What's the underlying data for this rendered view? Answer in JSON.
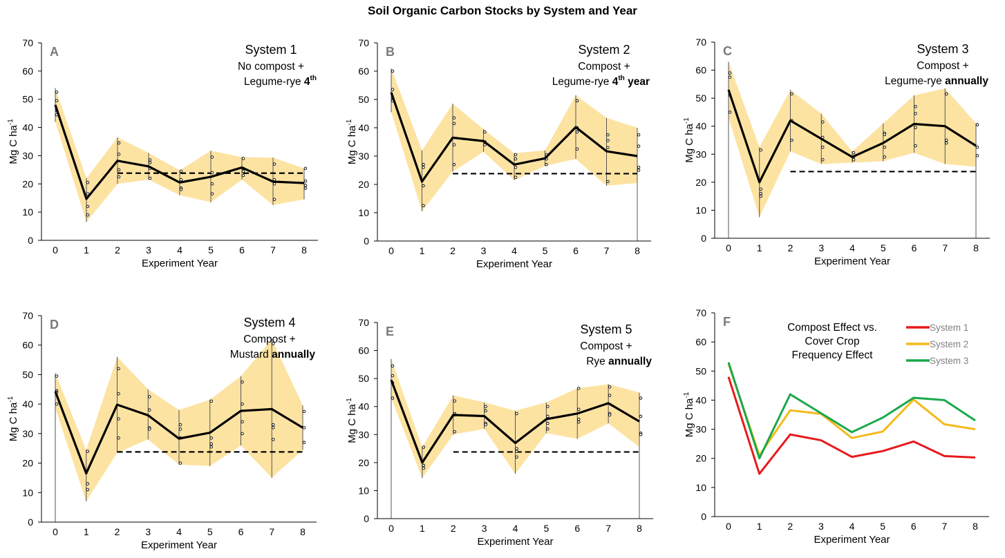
{
  "figure": {
    "title": "Soil Organic Carbon Stocks by System and Year"
  },
  "chart_data": [
    {
      "type": "line",
      "panel_letter": "A",
      "title": "System 1",
      "subtitle_line1": "No compost +",
      "subtitle_line2_plain": "Legume-rye ",
      "subtitle_line2_bold": "4",
      "subtitle_line2_sup": "th",
      "subtitle_line2_tail": "",
      "xlabel": "Experiment Year",
      "ylabel": "Mg C ha",
      "ylabel_sup": "-1",
      "x": [
        0,
        1,
        2,
        3,
        4,
        5,
        6,
        7,
        8
      ],
      "x_tick_labels": [
        "0",
        "1",
        "2",
        "3",
        "4",
        "5",
        "6",
        "7",
        "8"
      ],
      "ylim": [
        0,
        70
      ],
      "y_tick_labels": [
        "0",
        "10",
        "20",
        "30",
        "40",
        "50",
        "60",
        "70"
      ],
      "series": [
        {
          "values": [
            48,
            14.7,
            28.2,
            26.2,
            20.5,
            22.5,
            25.8,
            20.8,
            20.3
          ]
        }
      ],
      "band_upper": [
        54,
        22,
        36.5,
        31,
        24.8,
        31.8,
        29.5,
        29.3,
        25.5
      ],
      "band_lower": [
        42,
        6.5,
        20,
        21.5,
        16,
        13.5,
        21.5,
        12.5,
        14.5
      ],
      "whisker_upper": [
        54,
        22,
        36.5,
        31,
        24.8,
        31.8,
        29.5,
        29.3,
        25.5
      ],
      "whisker_lower": [
        42,
        6.5,
        20,
        21.5,
        16,
        13.5,
        21.5,
        12.5,
        14.5
      ],
      "reference_line": {
        "y": 23.8,
        "x_start": 2,
        "x_end": 8
      },
      "points": [
        [
          0,
          52.5
        ],
        [
          0,
          49.5
        ],
        [
          0,
          46
        ],
        [
          0,
          44.5
        ],
        [
          1,
          20.5
        ],
        [
          1,
          16.5
        ],
        [
          1,
          12
        ],
        [
          1,
          9
        ],
        [
          2,
          34.5
        ],
        [
          2,
          30.5
        ],
        [
          2,
          25
        ],
        [
          2,
          22.5
        ],
        [
          3,
          28.5
        ],
        [
          3,
          27.5
        ],
        [
          3,
          25.5
        ],
        [
          3,
          22
        ],
        [
          4,
          24.5
        ],
        [
          4,
          21.5
        ],
        [
          4,
          18.5
        ],
        [
          4,
          18
        ],
        [
          5,
          29.5
        ],
        [
          5,
          24
        ],
        [
          5,
          20
        ],
        [
          5,
          16.5
        ],
        [
          6,
          29
        ],
        [
          6,
          25.5
        ],
        [
          6,
          24.5
        ],
        [
          6,
          23
        ],
        [
          7,
          27
        ],
        [
          7,
          21.5
        ],
        [
          7,
          20
        ],
        [
          7,
          14.5
        ],
        [
          8,
          25.5
        ],
        [
          8,
          21
        ],
        [
          8,
          19.5
        ],
        [
          8,
          18.5
        ]
      ]
    },
    {
      "type": "line",
      "panel_letter": "B",
      "title": "System 2",
      "subtitle_line1": "Compost +",
      "subtitle_line2_plain": "Legume-rye ",
      "subtitle_line2_bold": "4",
      "subtitle_line2_sup": "th",
      "subtitle_line2_tail": " year",
      "xlabel": "Experiment Year",
      "ylabel": "Mg C ha",
      "ylabel_sup": "-1",
      "x": [
        0,
        1,
        2,
        3,
        4,
        5,
        6,
        7,
        8
      ],
      "x_tick_labels": [
        "0",
        "1",
        "2",
        "3",
        "4",
        "5",
        "6",
        "7",
        "8"
      ],
      "ylim": [
        0,
        70
      ],
      "y_tick_labels": [
        "0",
        "10",
        "20",
        "30",
        "40",
        "50",
        "60",
        "70"
      ],
      "series": [
        {
          "values": [
            52.5,
            21,
            36.5,
            35.3,
            27,
            29.2,
            40.2,
            31.7,
            30
          ]
        }
      ],
      "band_upper": [
        61,
        32,
        48.5,
        39.5,
        31,
        32,
        51.5,
        43.5,
        40
      ],
      "band_lower": [
        45.5,
        10.5,
        24.5,
        31.5,
        21.5,
        26.5,
        29,
        19.5,
        20.5
      ],
      "whisker_upper": [
        61,
        32,
        48.5,
        39.5,
        31,
        32,
        51.5,
        43.5,
        40
      ],
      "whisker_lower": [
        45.5,
        10.5,
        24.5,
        31.5,
        21.5,
        26.5,
        29,
        19.5,
        0
      ],
      "reference_line": {
        "y": 23.8,
        "x_start": 2,
        "x_end": 8
      },
      "points": [
        [
          0,
          60
        ],
        [
          0,
          53.5
        ],
        [
          0,
          50.5
        ],
        [
          0,
          49.5
        ],
        [
          1,
          27
        ],
        [
          1,
          26
        ],
        [
          1,
          19.5
        ],
        [
          1,
          12.5
        ],
        [
          2,
          43.5
        ],
        [
          2,
          41.5
        ],
        [
          2,
          34
        ],
        [
          2,
          27
        ],
        [
          3,
          38.5
        ],
        [
          3,
          35
        ],
        [
          3,
          34
        ],
        [
          4,
          30.5
        ],
        [
          4,
          29
        ],
        [
          4,
          26
        ],
        [
          4,
          22.5
        ],
        [
          5,
          30.5
        ],
        [
          5,
          29
        ],
        [
          5,
          27
        ],
        [
          6,
          49.5
        ],
        [
          6,
          40
        ],
        [
          6,
          38.5
        ],
        [
          6,
          32.5
        ],
        [
          7,
          37.5
        ],
        [
          7,
          35.5
        ],
        [
          7,
          33
        ],
        [
          7,
          21
        ],
        [
          8,
          37.5
        ],
        [
          8,
          33.5
        ],
        [
          8,
          26
        ],
        [
          8,
          25
        ]
      ]
    },
    {
      "type": "line",
      "panel_letter": "C",
      "title": "System 3",
      "subtitle_line1": "Compost +",
      "subtitle_line2_plain": "Legume-rye ",
      "subtitle_line2_bold": "annually",
      "subtitle_line2_sup": "",
      "subtitle_line2_tail": "",
      "xlabel": "Experiment Year",
      "ylabel": "Mg C ha",
      "ylabel_sup": "-1",
      "x": [
        0,
        1,
        2,
        3,
        4,
        5,
        6,
        7,
        8
      ],
      "x_tick_labels": [
        "0",
        "1",
        "2",
        "3",
        "4",
        "5",
        "6",
        "7",
        "8"
      ],
      "ylim": [
        0,
        70
      ],
      "y_tick_labels": [
        "0",
        "10",
        "20",
        "30",
        "40",
        "50",
        "60",
        "70"
      ],
      "series": [
        {
          "values": [
            53,
            20,
            42,
            35.5,
            29,
            34,
            40.8,
            40,
            33
          ]
        }
      ],
      "band_upper": [
        63,
        32.5,
        53,
        44.5,
        31,
        41,
        51,
        53.5,
        41
      ],
      "band_lower": [
        43,
        7.5,
        31,
        26.5,
        27,
        27.5,
        30.5,
        26.5,
        25.5
      ],
      "whisker_upper": [
        63,
        32.5,
        53,
        44.5,
        31,
        41,
        51,
        53.5,
        41
      ],
      "whisker_lower": [
        0,
        7.5,
        31,
        26.5,
        27,
        27.5,
        30.5,
        26.5,
        0
      ],
      "reference_line": {
        "y": 23.8,
        "x_start": 2,
        "x_end": 8
      },
      "points": [
        [
          0,
          59
        ],
        [
          0,
          57.5
        ],
        [
          0,
          51
        ],
        [
          0,
          45
        ],
        [
          1,
          31.5
        ],
        [
          1,
          17.5
        ],
        [
          1,
          16
        ],
        [
          1,
          15
        ],
        [
          2,
          51.5
        ],
        [
          2,
          42
        ],
        [
          2,
          35
        ],
        [
          3,
          41.5
        ],
        [
          3,
          36
        ],
        [
          3,
          32.5
        ],
        [
          3,
          28
        ],
        [
          4,
          30.5
        ],
        [
          4,
          29
        ],
        [
          4,
          28
        ],
        [
          5,
          37.5
        ],
        [
          5,
          37
        ],
        [
          5,
          32.5
        ],
        [
          5,
          29
        ],
        [
          6,
          47
        ],
        [
          6,
          44.5
        ],
        [
          6,
          39.5
        ],
        [
          6,
          33
        ],
        [
          7,
          51.5
        ],
        [
          7,
          35
        ],
        [
          7,
          34
        ],
        [
          8,
          40.5
        ],
        [
          8,
          32.5
        ],
        [
          8,
          29.5
        ]
      ]
    },
    {
      "type": "line",
      "panel_letter": "D",
      "title": "System 4",
      "subtitle_line1": "Compost +",
      "subtitle_line2_plain": "Mustard ",
      "subtitle_line2_bold": "annually",
      "subtitle_line2_sup": "",
      "subtitle_line2_tail": "",
      "xlabel": "Experiment Year",
      "ylabel": "Mg C ha",
      "ylabel_sup": "-1",
      "x": [
        0,
        1,
        2,
        3,
        4,
        5,
        6,
        7,
        8
      ],
      "x_tick_labels": [
        "0",
        "1",
        "2",
        "3",
        "4",
        "5",
        "6",
        "7",
        "8"
      ],
      "ylim": [
        0,
        70
      ],
      "y_tick_labels": [
        "0",
        "10",
        "20",
        "30",
        "40",
        "50",
        "60",
        "70"
      ],
      "series": [
        {
          "values": [
            44.3,
            16.5,
            39.8,
            36.2,
            28.3,
            30.3,
            37.7,
            38.3,
            32
          ]
        }
      ],
      "band_upper": [
        50.5,
        24.5,
        56,
        45,
        38,
        41.5,
        49.5,
        62,
        39.5
      ],
      "band_lower": [
        38.5,
        7,
        23.5,
        28,
        19.5,
        19,
        26,
        15,
        24.5
      ],
      "whisker_upper": [
        50.5,
        24.5,
        56,
        45,
        38,
        41.5,
        49.5,
        62,
        39.5
      ],
      "whisker_lower": [
        0,
        7,
        23.5,
        28,
        19.5,
        19,
        26,
        15,
        24.5
      ],
      "reference_line": {
        "y": 23.8,
        "x_start": 2,
        "x_end": 8
      },
      "points": [
        [
          0,
          49.5
        ],
        [
          0,
          44.5
        ],
        [
          0,
          44
        ],
        [
          0,
          40
        ],
        [
          1,
          24
        ],
        [
          1,
          13
        ],
        [
          1,
          11
        ],
        [
          2,
          52
        ],
        [
          2,
          43.5
        ],
        [
          2,
          35
        ],
        [
          2,
          28.5
        ],
        [
          3,
          42.5
        ],
        [
          3,
          38
        ],
        [
          3,
          32
        ],
        [
          3,
          31.5
        ],
        [
          4,
          33
        ],
        [
          4,
          31.5
        ],
        [
          4,
          28.5
        ],
        [
          4,
          20
        ],
        [
          5,
          41
        ],
        [
          5,
          28.5
        ],
        [
          5,
          26.5
        ],
        [
          5,
          25.5
        ],
        [
          6,
          47.5
        ],
        [
          6,
          40
        ],
        [
          6,
          34
        ],
        [
          6,
          30
        ],
        [
          7,
          60.5
        ],
        [
          7,
          33
        ],
        [
          7,
          32
        ],
        [
          7,
          28
        ],
        [
          8,
          37.5
        ],
        [
          8,
          32
        ],
        [
          8,
          27
        ]
      ]
    },
    {
      "type": "line",
      "panel_letter": "E",
      "title": "System 5",
      "subtitle_line1": "Compost +",
      "subtitle_line2_plain": "Rye ",
      "subtitle_line2_bold": "annually",
      "subtitle_line2_sup": "",
      "subtitle_line2_tail": "",
      "xlabel": "Experiment Year",
      "ylabel": "Mg C ha",
      "ylabel_sup": "-1",
      "x": [
        0,
        1,
        2,
        3,
        4,
        5,
        6,
        7,
        8
      ],
      "x_tick_labels": [
        "0",
        "1",
        "2",
        "3",
        "4",
        "5",
        "6",
        "7",
        "8"
      ],
      "ylim": [
        0,
        70
      ],
      "y_tick_labels": [
        "0",
        "10",
        "20",
        "30",
        "40",
        "50",
        "60",
        "70"
      ],
      "series": [
        {
          "values": [
            49.5,
            20,
            37,
            36.6,
            27,
            35.5,
            37.5,
            41.2,
            34.7
          ]
        }
      ],
      "band_upper": [
        57,
        25.5,
        44,
        41.5,
        38.5,
        41.5,
        46.5,
        48,
        45
      ],
      "band_lower": [
        43,
        14.5,
        30,
        32,
        16,
        30.5,
        28.5,
        34,
        25.5
      ],
      "whisker_upper": [
        57,
        25.5,
        44,
        41.5,
        38.5,
        41.5,
        46.5,
        48,
        45
      ],
      "whisker_lower": [
        0,
        14.5,
        30,
        32,
        16,
        30.5,
        28.5,
        34,
        0
      ],
      "reference_line": {
        "y": 23.8,
        "x_start": 2,
        "x_end": 8
      },
      "points": [
        [
          0,
          54.5
        ],
        [
          0,
          51
        ],
        [
          0,
          48.5
        ],
        [
          0,
          43
        ],
        [
          1,
          25.5
        ],
        [
          1,
          19
        ],
        [
          1,
          18
        ],
        [
          2,
          42
        ],
        [
          2,
          37.5
        ],
        [
          2,
          37
        ],
        [
          2,
          31
        ],
        [
          3,
          40
        ],
        [
          3,
          38.5
        ],
        [
          3,
          34
        ],
        [
          3,
          33.5
        ],
        [
          4,
          37.5
        ],
        [
          4,
          25
        ],
        [
          4,
          24
        ],
        [
          4,
          22
        ],
        [
          5,
          40
        ],
        [
          5,
          36.5
        ],
        [
          5,
          34
        ],
        [
          5,
          32
        ],
        [
          6,
          46.5
        ],
        [
          6,
          39
        ],
        [
          6,
          35.5
        ],
        [
          6,
          34.5
        ],
        [
          7,
          47
        ],
        [
          7,
          44
        ],
        [
          7,
          37.5
        ],
        [
          7,
          37
        ],
        [
          8,
          43
        ],
        [
          8,
          36.5
        ],
        [
          8,
          30.5
        ],
        [
          8,
          30
        ]
      ]
    },
    {
      "type": "line",
      "panel_letter": "F",
      "title_lines": [
        "Compost Effect vs.",
        "Cover Crop",
        "Frequency Effect"
      ],
      "xlabel": "Experiment Year",
      "ylabel": "Mg C ha",
      "ylabel_sup": "-1",
      "x": [
        0,
        1,
        2,
        3,
        4,
        5,
        6,
        7,
        8
      ],
      "x_tick_labels": [
        "0",
        "1",
        "2",
        "3",
        "4",
        "5",
        "6",
        "7",
        "8"
      ],
      "ylim": [
        0,
        70
      ],
      "y_tick_labels": [
        "0",
        "10",
        "20",
        "30",
        "40",
        "50",
        "60",
        "70"
      ],
      "legend_position": "top-right",
      "series": [
        {
          "name": "System 1",
          "color": "#e8191c",
          "values": [
            48,
            14.7,
            28.2,
            26.2,
            20.5,
            22.5,
            25.8,
            20.8,
            20.3
          ]
        },
        {
          "name": "System 2",
          "color": "#f5b91a",
          "values": [
            52.5,
            21,
            36.5,
            35.3,
            27,
            29.2,
            40.2,
            31.7,
            30
          ]
        },
        {
          "name": "System 3",
          "color": "#1aa84a",
          "values": [
            53,
            20,
            42,
            35.5,
            29,
            34,
            40.8,
            40,
            33
          ]
        }
      ]
    }
  ]
}
